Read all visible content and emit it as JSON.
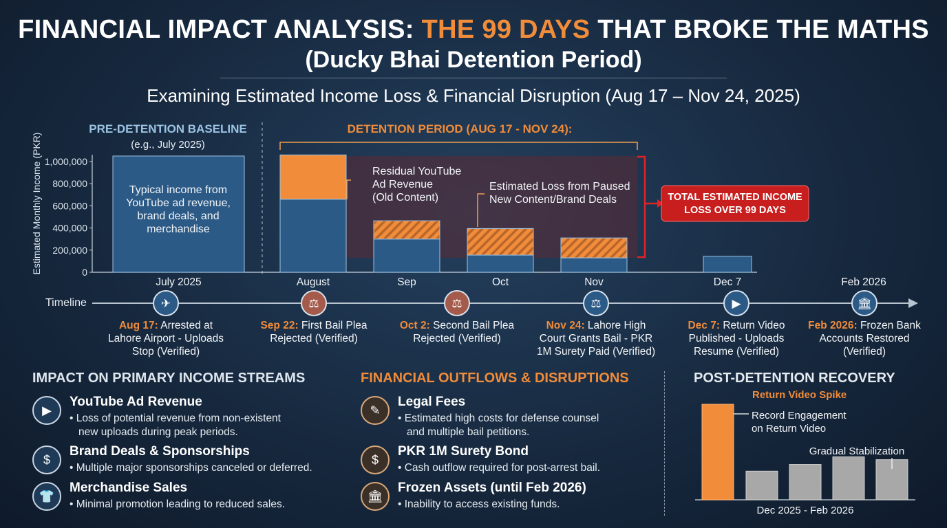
{
  "header": {
    "title_part1": "FINANCIAL IMPACT ANALYSIS: ",
    "title_highlight": "THE 99 DAYS",
    "title_part2": " THAT BROKE THE MATHS",
    "title_line2": "(Ducky Bhai Detention Period)",
    "subtitle": "Examining Estimated Income Loss & Financial Disruption (Aug 17 – Nov 24, 2025)"
  },
  "chart_data": {
    "type": "bar",
    "ylabel": "Estimated Monthly Income (PKR)",
    "ylim": [
      0,
      1000000
    ],
    "yticks": [
      "1,000,000",
      "800,000",
      "600,000",
      "400,000",
      "200,000",
      "0"
    ],
    "categories": [
      "July 2025",
      "August",
      "Sep",
      "Oct",
      "Nov",
      "Dec 7"
    ],
    "series": [
      {
        "name": "Residual YouTube Ad Revenue (Old Content)",
        "values": [
          1050000,
          660000,
          300000,
          155000,
          130000,
          145000
        ]
      },
      {
        "name": "Estimated Loss from Paused New Content/Brand Deals",
        "values": [
          0,
          400000,
          165000,
          240000,
          180000,
          0
        ]
      }
    ],
    "pre_heading": "PRE-DETENTION BASELINE",
    "pre_sub": "(e.g., July 2025)",
    "pre_text": "Typical income from YouTube ad revenue, brand deals, and merchandise",
    "detention_heading": "DETENTION PERIOD (AUG 17 - NOV 24):",
    "annotation_residual": "Residual YouTube Ad Revenue (Old Content)",
    "annotation_loss": "Estimated Loss from Paused New Content/Brand Deals",
    "total_loss_label": "TOTAL ESTIMATED INCOME LOSS OVER 99 DAYS",
    "extra_tick": "Feb 2026"
  },
  "timeline": {
    "label": "Timeline",
    "events": [
      {
        "icon": "airplane-icon",
        "glyph": "✈",
        "color": "#2c5a86",
        "date": "Aug 17:",
        "text": " Arrested at Lahore Airport - Uploads Stop (Verified)"
      },
      {
        "icon": "courthouse-icon",
        "glyph": "⚖",
        "color": "#a55b4b",
        "date": "Sep 22:",
        "text": " First Bail Plea Rejected (Verified)"
      },
      {
        "icon": "courthouse-icon",
        "glyph": "⚖",
        "color": "#a55b4b",
        "date": "Oct 2:",
        "text": " Second Bail Plea Rejected (Verified)"
      },
      {
        "icon": "scales-icon",
        "glyph": "⚖",
        "color": "#2c5a86",
        "date": "Nov 24:",
        "text": " Lahore High Court Grants Bail - PKR 1M Surety Paid (Verified)"
      },
      {
        "icon": "video-camera-icon",
        "glyph": "▶",
        "color": "#2c5a86",
        "date": "Dec 7:",
        "text": " Return Video Published - Uploads Resume (Verified)"
      },
      {
        "icon": "bank-icon",
        "glyph": "🏛",
        "color": "#2c5a86",
        "date": "Feb 2026:",
        "text": " Frozen Bank Accounts Restored (Verified)"
      }
    ]
  },
  "impact": {
    "heading": "IMPACT ON PRIMARY INCOME STREAMS",
    "items": [
      {
        "icon": "youtube-icon",
        "glyph": "▶",
        "title": "YouTube Ad Revenue",
        "line1": "• Loss of potential revenue from non-existent",
        "line2": "new uploads during peak periods."
      },
      {
        "icon": "money-hand-icon",
        "glyph": "$",
        "title": "Brand Deals & Sponsorships",
        "line1": "• Multiple major sponsorships canceled or deferred.",
        "line2": ""
      },
      {
        "icon": "tshirt-icon",
        "glyph": "👕",
        "title": "Merchandise Sales",
        "line1": "• Minimal promotion leading to reduced sales.",
        "line2": ""
      }
    ]
  },
  "outflows": {
    "heading": "FINANCIAL OUTFLOWS & DISRUPTIONS",
    "items": [
      {
        "icon": "legal-document-icon",
        "glyph": "✎",
        "title": "Legal Fees",
        "line1": "• Estimated high costs for defense counsel",
        "line2": "and multiple bail petitions."
      },
      {
        "icon": "money-bag-icon",
        "glyph": "$",
        "title": "PKR 1M Surety Bond",
        "line1": "• Cash outflow required for post-arrest bail.",
        "line2": ""
      },
      {
        "icon": "bank-icon",
        "glyph": "🏛",
        "title": "Frozen Assets (until Feb 2026)",
        "line1": "• Inability to access existing funds.",
        "line2": ""
      }
    ]
  },
  "recovery": {
    "heading": "POST-DETENTION RECOVERY",
    "sub": "Return Video Spike",
    "annotation_spike": "Record Engagement on Return Video",
    "annotation_stable": "Gradual Stabilization",
    "xlabel": "Dec 2025 - Feb 2026",
    "chart_data": {
      "type": "bar",
      "values": [
        100,
        30,
        37,
        45,
        42
      ],
      "colors": [
        "#f08c3a",
        "#a8a8a8",
        "#a8a8a8",
        "#a8a8a8",
        "#a8a8a8"
      ]
    }
  },
  "colors": {
    "accent_orange": "#f08c3a",
    "bar_blue": "#2c5a86",
    "alert_red": "#c81e1e"
  }
}
